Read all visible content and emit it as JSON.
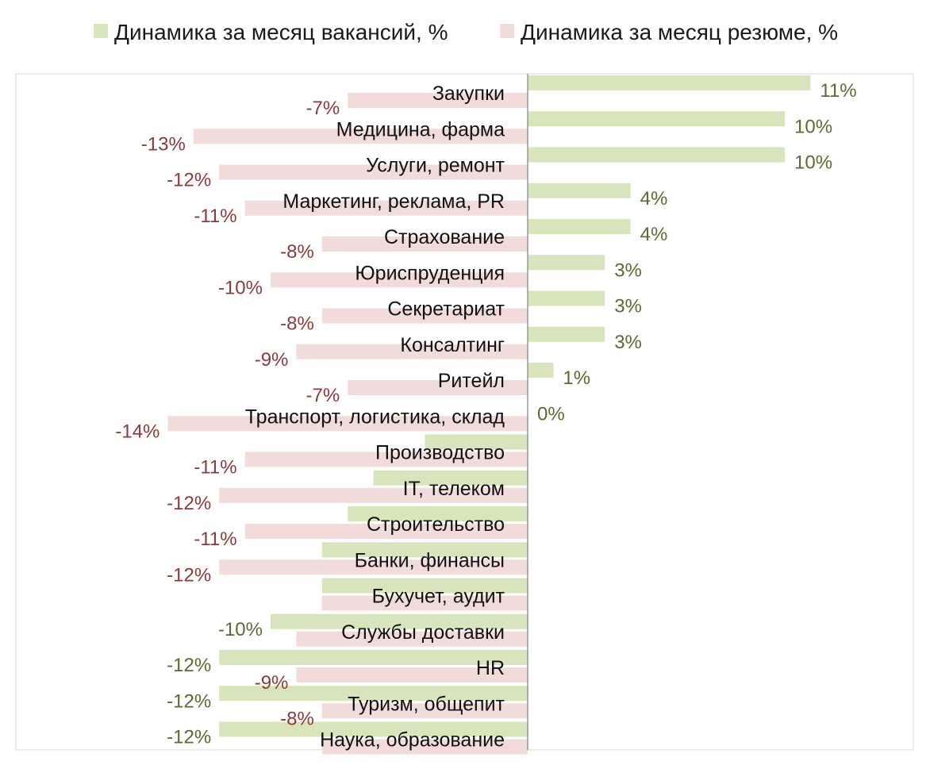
{
  "chart_data": {
    "type": "bar",
    "orientation": "horizontal",
    "title": "",
    "xlabel": "",
    "ylabel": "",
    "legend_position": "top",
    "grid": false,
    "xlim": [
      -16,
      12
    ],
    "categories": [
      "Закупки",
      "Медицина, фарма",
      "Услуги, ремонт",
      "Маркетинг, реклама, PR",
      "Страхование",
      "Юриспруденция",
      "Секретариат",
      "Консалтинг",
      "Ритейл",
      "Транспорт, логистика, склад",
      "Производство",
      "IT, телеком",
      "Строительство",
      "Банки, финансы",
      "Бухучет, аудит",
      "Службы доставки",
      "HR",
      "Туризм, общепит",
      "Наука, образование"
    ],
    "series": [
      {
        "name": "Динамика за месяц вакансий, %",
        "color": "#d8e4bc",
        "label_color": "#5a6b32",
        "values": [
          11,
          10,
          10,
          4,
          4,
          3,
          3,
          3,
          1,
          0,
          -4,
          -6,
          -7,
          -8,
          -8,
          -10,
          -12,
          -12,
          -12
        ],
        "labels": [
          "11%",
          "10%",
          "10%",
          "4%",
          "4%",
          "3%",
          "3%",
          "3%",
          "1%",
          "0%",
          "",
          "",
          "",
          "",
          "",
          "-10%",
          "-12%",
          "-12%",
          "-12%"
        ]
      },
      {
        "name": "Динамика за месяц резюме, %",
        "color": "#f2dcdb",
        "label_color": "#8b3a3a",
        "values": [
          -7,
          -13,
          -12,
          -11,
          -8,
          -10,
          -8,
          -9,
          -7,
          -14,
          -11,
          -12,
          -11,
          -12,
          -8,
          -9,
          -9,
          -8,
          -8
        ],
        "labels": [
          "-7%",
          "-13%",
          "-12%",
          "-11%",
          "-8%",
          "-10%",
          "-8%",
          "-9%",
          "-7%",
          "-14%",
          "-11%",
          "-12%",
          "-11%",
          "-12%",
          "",
          "",
          "-9%",
          "-8%",
          ""
        ]
      }
    ]
  }
}
